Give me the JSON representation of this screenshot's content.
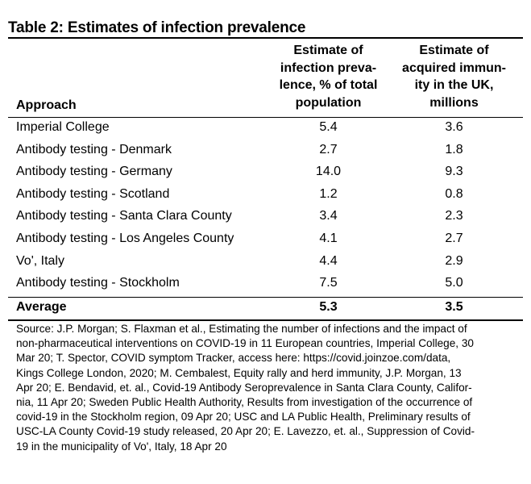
{
  "title": "Table 2: Estimates of infection prevalence",
  "headers": {
    "approach": "Approach",
    "col1": [
      "Estimate of",
      "infection preva-",
      "lence, % of total",
      "population"
    ],
    "col2": [
      "Estimate of",
      "acquired immun-",
      "ity in the UK,",
      "millions"
    ]
  },
  "rows": [
    {
      "approach": "Imperial College",
      "prevalence": "5.4",
      "immunity": "3.6"
    },
    {
      "approach": "Antibody testing - Denmark",
      "prevalence": "2.7",
      "immunity": "1.8"
    },
    {
      "approach": "Antibody testing - Germany",
      "prevalence": "14.0",
      "immunity": "9.3"
    },
    {
      "approach": "Antibody testing - Scotland",
      "prevalence": "1.2",
      "immunity": "0.8"
    },
    {
      "approach": "Antibody testing - Santa Clara County",
      "prevalence": "3.4",
      "immunity": "2.3"
    },
    {
      "approach": "Antibody testing - Los Angeles County",
      "prevalence": "4.1",
      "immunity": "2.7"
    },
    {
      "approach": "Vo', Italy",
      "prevalence": "4.4",
      "immunity": "2.9"
    },
    {
      "approach": "Antibody testing - Stockholm",
      "prevalence": "7.5",
      "immunity": "5.0"
    }
  ],
  "average": {
    "label": "Average",
    "prevalence": "5.3",
    "immunity": "3.5"
  },
  "source_lines": [
    "Source: J.P. Morgan; S. Flaxman et al., Estimating the number of infections and the impact of",
    "non-pharmaceutical interventions on COVID-19 in 11 European countries, Imperial College, 30",
    "Mar 20; T. Spector, COVID symptom Tracker, access here: https://covid.joinzoe.com/data,",
    "Kings College London, 2020; M. Cembalest, Equity rally and herd immunity, J.P. Morgan, 13",
    "Apr 20; E. Bendavid, et. al., Covid-19 Antibody Seroprevalence in Santa Clara County, Califor-",
    "nia, 11 Apr 20; Sweden Public Health Authority, Results from investigation of the occurrence of",
    "covid-19 in the Stockholm region, 09 Apr 20; USC and LA Public Health, Preliminary results of",
    "USC-LA County Covid-19 study released, 20 Apr 20; E. Lavezzo, et. al., Suppression of Covid-",
    "19 in the municipality of Vo', Italy, 18 Apr 20"
  ]
}
